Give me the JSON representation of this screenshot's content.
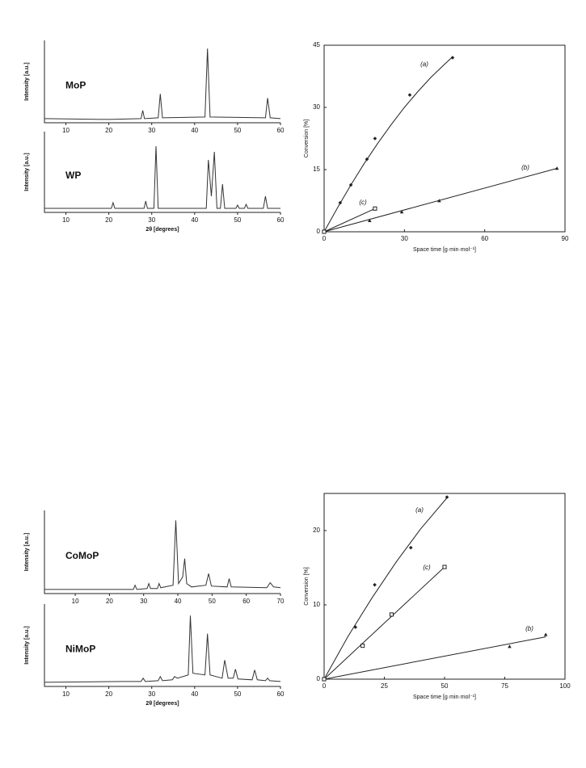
{
  "chart_data": [
    {
      "type": "xrd",
      "sample": "MoP",
      "ylabel": "Intensity [a.u.]",
      "xlim": [
        5,
        60
      ],
      "ylim": [
        0,
        100
      ],
      "xticks": [
        10,
        20,
        30,
        40,
        50,
        60
      ],
      "color": "#333333",
      "x": [
        5,
        20,
        27.5,
        27.9,
        28.3,
        31.5,
        32,
        32.5,
        42.4,
        43,
        43.6,
        56.5,
        57,
        57.6,
        60
      ],
      "values": [
        5,
        4,
        5,
        15,
        5,
        6,
        35,
        6,
        7,
        90,
        7,
        6,
        30,
        6,
        5
      ]
    },
    {
      "type": "xrd",
      "sample": "WP",
      "ylabel": "Intensity [a.u.]",
      "xlabel": "2θ [degrees]",
      "xlim": [
        5,
        60
      ],
      "ylim": [
        0,
        100
      ],
      "xticks": [
        10,
        20,
        30,
        40,
        50,
        60
      ],
      "color": "#333333",
      "x": [
        5,
        20.6,
        21,
        21.4,
        28.2,
        28.6,
        29,
        30.5,
        31,
        31.5,
        42.7,
        43.2,
        43.9,
        44.6,
        45.2,
        46,
        46.5,
        47,
        49.6,
        50,
        50.4,
        51.6,
        52,
        52.4,
        56,
        56.5,
        57,
        60
      ],
      "values": [
        5,
        5,
        12,
        5,
        5,
        14,
        5,
        5,
        82,
        5,
        5,
        65,
        20,
        75,
        5,
        5,
        35,
        5,
        5,
        9,
        5,
        5,
        10,
        5,
        5,
        20,
        5,
        5
      ]
    },
    {
      "type": "conversion",
      "xlabel": "Space time [g·min·mol⁻¹]",
      "ylabel": "Conversion [%]",
      "xlim": [
        0,
        90
      ],
      "ylim": [
        0,
        45
      ],
      "xticks": [
        0,
        30,
        60,
        90
      ],
      "yticks": [
        0,
        15,
        30,
        45
      ],
      "color": "#222222",
      "series": [
        {
          "name": "(a)",
          "marker": "diamond",
          "x": [
            0,
            6,
            10,
            16,
            19,
            32,
            48
          ],
          "values": [
            0,
            7,
            11.3,
            17.5,
            22.5,
            33,
            42
          ],
          "fit": {
            "x": [
              0,
              5,
              10,
              15,
              20,
              25,
              30,
              35,
              40,
              45,
              48
            ],
            "values": [
              0,
              5.8,
              11.3,
              16.5,
              21.3,
              25.8,
              30,
              33.8,
              37.3,
              40.4,
              42.2
            ]
          }
        },
        {
          "name": "(b)",
          "marker": "triangle",
          "x": [
            0,
            17,
            29,
            43,
            87
          ],
          "values": [
            0,
            2.7,
            4.8,
            7.5,
            15.3
          ],
          "fit": {
            "x": [
              0,
              87
            ],
            "values": [
              0,
              15.3
            ]
          }
        },
        {
          "name": "(c)",
          "marker": "square",
          "x": [
            0,
            19
          ],
          "values": [
            0,
            5.6
          ],
          "fit": {
            "x": [
              0,
              19
            ],
            "values": [
              0,
              5.6
            ]
          }
        }
      ]
    },
    {
      "type": "xrd",
      "sample": "CoMoP",
      "ylabel": "Intensity [a.u.]",
      "xlim": [
        1,
        70
      ],
      "ylim": [
        0,
        100
      ],
      "xticks": [
        10,
        20,
        30,
        40,
        50,
        60,
        70
      ],
      "color": "#333333",
      "x": [
        1,
        27,
        27.5,
        28,
        31,
        31.5,
        32,
        34,
        34.5,
        35,
        38.6,
        39.4,
        40.2,
        41.4,
        42,
        42.6,
        44,
        48.2,
        49,
        49.8,
        54.4,
        55,
        55.6,
        66,
        67,
        68,
        70
      ],
      "values": [
        5,
        5,
        10,
        5,
        6,
        12,
        6,
        6,
        12,
        7,
        10,
        88,
        12,
        20,
        42,
        12,
        8,
        10,
        24,
        9,
        8,
        18,
        8,
        7,
        13,
        8,
        7
      ]
    },
    {
      "type": "xrd",
      "sample": "NiMoP",
      "ylabel": "Intensity [a.u.]",
      "xlabel": "2θ [degrees]",
      "xlim": [
        5,
        60
      ],
      "ylim": [
        0,
        100
      ],
      "xticks": [
        10,
        20,
        30,
        40,
        50,
        60
      ],
      "color": "#333333",
      "x": [
        5,
        23,
        27.5,
        28,
        28.5,
        31.5,
        32,
        32.5,
        34.8,
        35.3,
        36,
        38.5,
        39,
        39.6,
        42.4,
        43,
        43.6,
        46.4,
        47,
        47.8,
        49,
        49.5,
        50.1,
        53.4,
        54,
        54.6,
        56.5,
        57,
        57.5,
        60
      ],
      "values": [
        5,
        6,
        6,
        10,
        6,
        7,
        12,
        7,
        8,
        12,
        10,
        14,
        86,
        16,
        14,
        64,
        14,
        10,
        32,
        10,
        10,
        21,
        9,
        8,
        20,
        8,
        7,
        10,
        7,
        6
      ]
    },
    {
      "type": "conversion",
      "xlabel": "Space time [g·min·mol⁻¹]",
      "ylabel": "Conversion [%]",
      "xlim": [
        0,
        100
      ],
      "ylim": [
        0,
        25
      ],
      "xticks": [
        0,
        25,
        50,
        75,
        100
      ],
      "yticks": [
        0,
        10,
        20
      ],
      "color": "#222222",
      "series": [
        {
          "name": "(a)",
          "marker": "diamond",
          "x": [
            0,
            13,
            21,
            36,
            51
          ],
          "values": [
            0,
            7,
            12.7,
            17.7,
            24.5
          ],
          "fit": {
            "x": [
              0,
              10,
              20,
              30,
              40,
              51
            ],
            "values": [
              0,
              5.8,
              11,
              15.8,
              20.2,
              24.4
            ]
          }
        },
        {
          "name": "(b)",
          "marker": "triangle",
          "x": [
            0,
            77,
            92
          ],
          "values": [
            0,
            4.4,
            6
          ],
          "fit": {
            "x": [
              0,
              92
            ],
            "values": [
              0,
              5.7
            ]
          }
        },
        {
          "name": "(c)",
          "marker": "square",
          "x": [
            0,
            16,
            28,
            50
          ],
          "values": [
            0,
            4.5,
            8.7,
            15.1
          ],
          "fit": {
            "x": [
              0,
              50
            ],
            "values": [
              0,
              15.1
            ]
          }
        }
      ]
    }
  ]
}
